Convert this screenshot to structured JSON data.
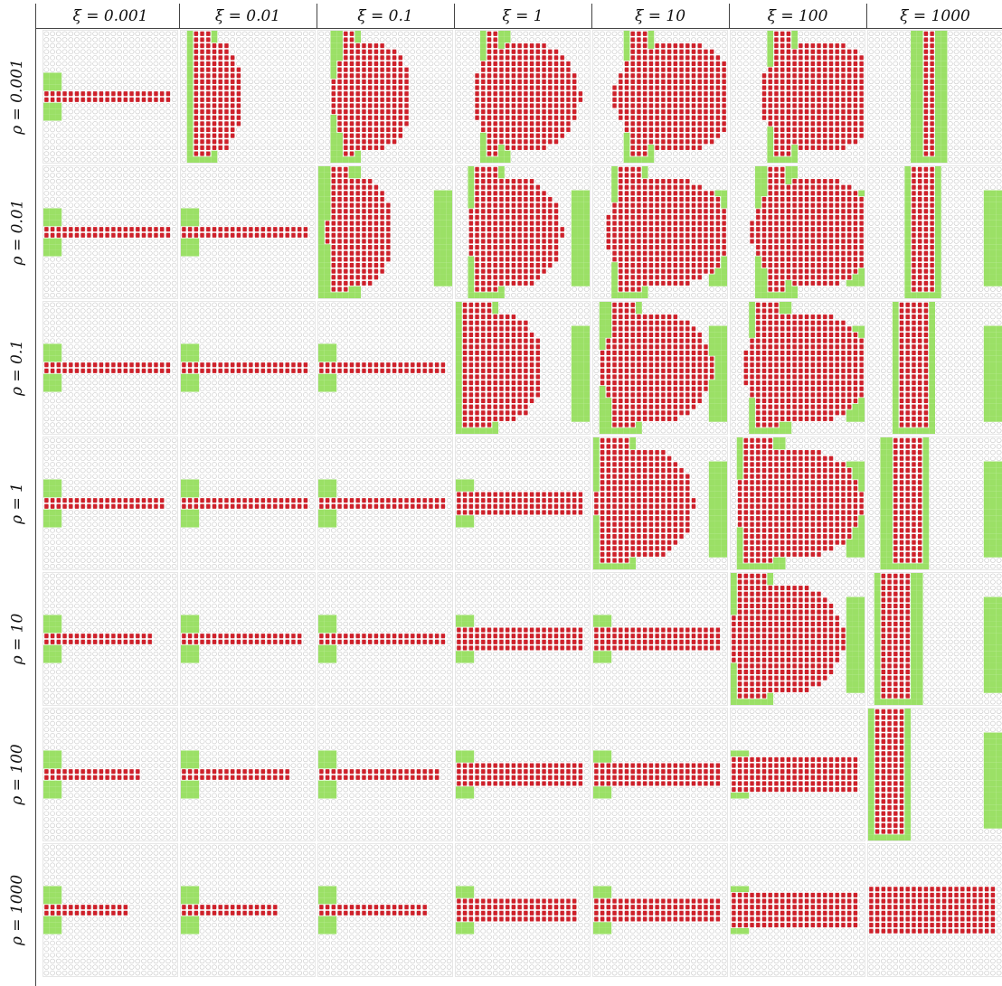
{
  "columns": [
    "ξ = 0.001",
    "ξ = 0.01",
    "ξ = 0.1",
    "ξ = 1",
    "ξ = 10",
    "ξ = 100",
    "ξ = 1000"
  ],
  "rows": [
    "ρ = 0.001",
    "ρ = 0.01",
    "ρ = 0.1",
    "ρ = 1",
    "ρ = 10",
    "ρ = 100",
    "ρ = 1000"
  ],
  "colors": {
    "background": "#ffffff",
    "panel_bg": "#ffffff",
    "empty_cell_stroke": "#c8c8c8",
    "red": "#d0202a",
    "green": "#9be066",
    "separator": "#e6e6e6",
    "rule": "#444444"
  },
  "grid": {
    "cells_per_side": 22
  }
}
